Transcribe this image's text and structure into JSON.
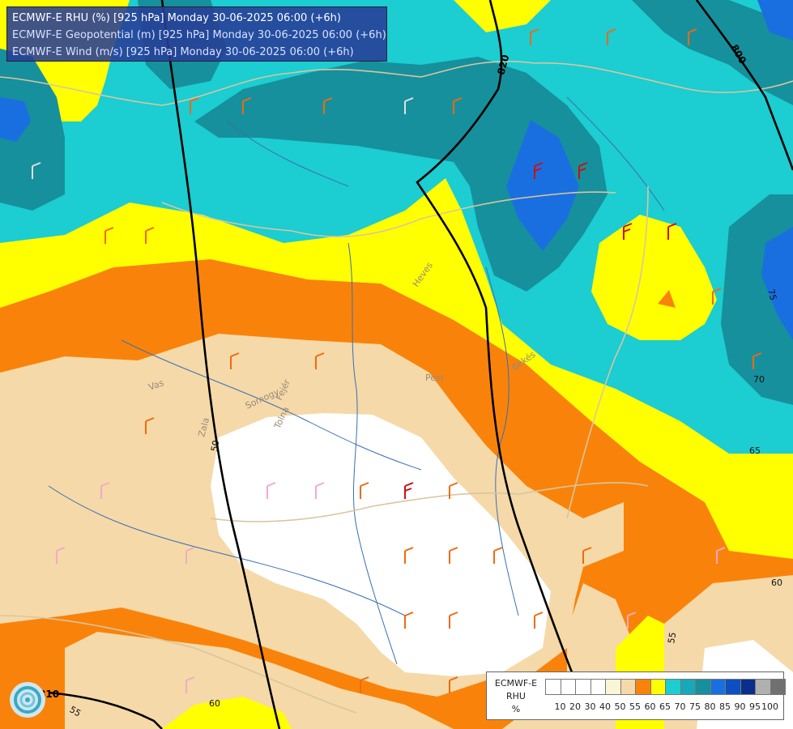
{
  "title": {
    "line1": "ECMWF-E RHU (%) [925 hPa] Monday 30-06-2025 06:00 (+6h)",
    "line2": "ECMWF-E Geopotential (m) [925 hPa] Monday 30-06-2025 06:00 (+6h)",
    "line3": "ECMWF-E Wind (m/s) [925 hPa] Monday 30-06-2025 06:00 (+6h)"
  },
  "contour_labels": {
    "geopotential": [
      "820",
      "800",
      "810"
    ],
    "rhu": [
      "50",
      "55",
      "60",
      "60",
      "65",
      "70",
      "75",
      "55"
    ]
  },
  "region_labels": [
    "Vas",
    "Zala",
    "Somogy",
    "Fejér",
    "Tolna",
    "Pest",
    "Heves",
    "Békés"
  ],
  "legend": {
    "title_lines": [
      "ECMWF-E",
      "RHU",
      "%"
    ],
    "ticks": [
      "10",
      "20",
      "30",
      "40",
      "50",
      "55",
      "60",
      "65",
      "70",
      "75",
      "80",
      "85",
      "90",
      "95",
      "100"
    ],
    "colors": [
      "#ffffff",
      "#ffffff",
      "#ffffff",
      "#ffffff",
      "#fbf5d8",
      "#f5d9a8",
      "#f9830a",
      "#ffff00",
      "#1ccdd1",
      "#18a9b8",
      "#16909c",
      "#1a6fe0",
      "#0d4fc0",
      "#0a2f8a",
      "#b0b0b0",
      "#707070"
    ]
  },
  "colors": {
    "rhu_50_55": "#f5d9a8",
    "rhu_55_60": "#f9830a",
    "rhu_60_65": "#ffff00",
    "rhu_65_70": "#1ccdd1",
    "rhu_70_75": "#16909c",
    "rhu_75_80": "#1a6fe0",
    "geopotential_line": "#000000",
    "borders": "#d8c6a0",
    "rivers": "#3a6fb5"
  },
  "icons": [
    "ecmwf-logo-icon",
    "wind-barb-icon"
  ]
}
